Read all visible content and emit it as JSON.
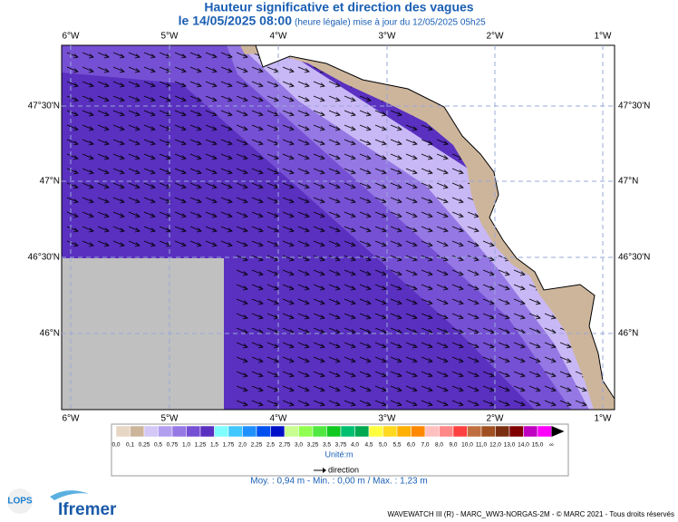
{
  "header": {
    "title": "Hauteur significative et direction des vagues",
    "date": "le 14/05/2025 08:00",
    "update": "(heure légale) mise à jour du 12/05/2025 05h25"
  },
  "map": {
    "lon_labels": [
      "6°W",
      "5°W",
      "4°W",
      "3°W",
      "2°W",
      "1°W"
    ],
    "lat_labels": [
      "47°30'N",
      "47°N",
      "46°30'N",
      "46°N"
    ]
  },
  "legend": {
    "labels": [
      "0,0",
      "0,1",
      "0,25",
      "0,5",
      "0,75",
      "1,0",
      "1,25",
      "1,5",
      "1,75",
      "2,0",
      "2,25",
      "2,5",
      "2,75",
      "3,0",
      "3,25",
      "3,5",
      "3,75",
      "4,0",
      "4,5",
      "5,0",
      "5,5",
      "6,0",
      "7,0",
      "8,0",
      "9,0",
      "10,0",
      "11,0",
      "12,0",
      "13,0",
      "14,0",
      "15,0",
      "∞"
    ],
    "colors": [
      "#e8d6c4",
      "#cdb59c",
      "#d4c8f6",
      "#b39ff0",
      "#9578e4",
      "#7650d4",
      "#5a30c0",
      "#80ffff",
      "#40c8ff",
      "#2090ff",
      "#0050f0",
      "#0010c8",
      "#c8ff90",
      "#90ff50",
      "#50e840",
      "#10c820",
      "#00c070",
      "#00a850",
      "#ffff40",
      "#ffd820",
      "#ffb000",
      "#ff8800",
      "#ffc0c0",
      "#ff8888",
      "#ff4040",
      "#c07040",
      "#a05020",
      "#7a2e10",
      "#800000",
      "#c000c0",
      "#ff00ff"
    ],
    "unit": "Unité:m",
    "direction": "direction",
    "stats": "Moy. : 0,94 m   -   Min. : 0,00 m / Max. : 1,23 m"
  },
  "footer": {
    "credits": "WAVEWATCH III (R) - MARC_WW3-NORGAS-2M - © MARC 2021 - Tous droits réservés",
    "lops": "LOPS",
    "ifremer": "Ifremer"
  }
}
